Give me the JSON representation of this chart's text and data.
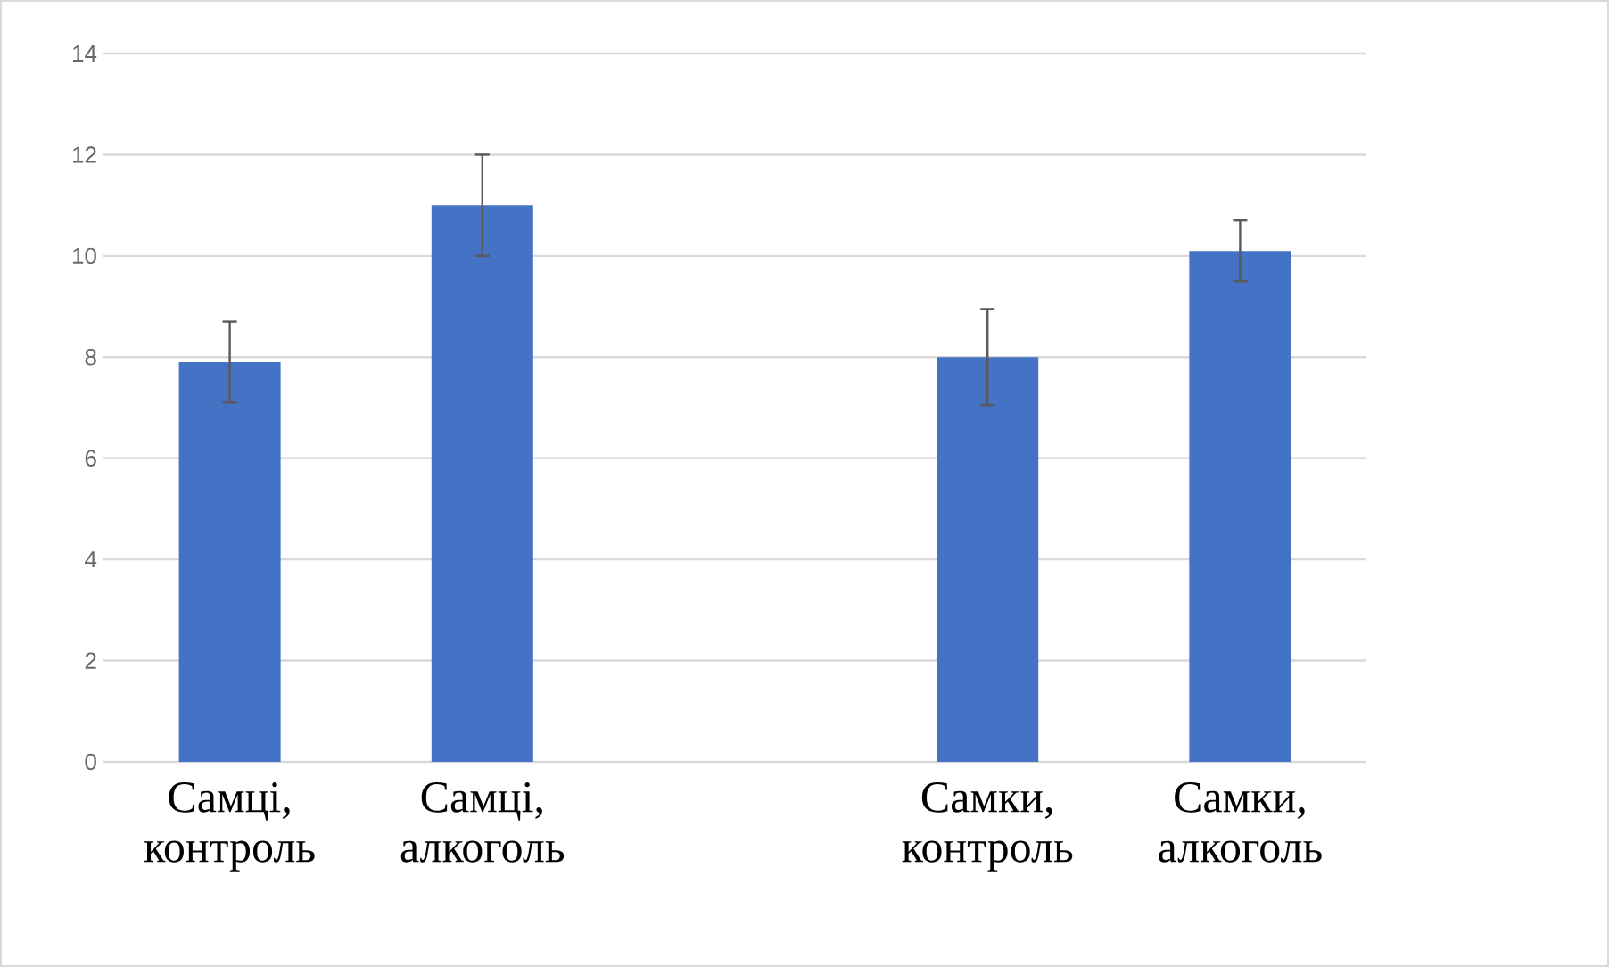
{
  "chart_data": {
    "type": "bar",
    "categories": [
      "Самці, контроль",
      "Самці, алкоголь",
      null,
      "Самки, контроль",
      "Самки, алкоголь"
    ],
    "values": [
      7.9,
      11.0,
      null,
      8.0,
      10.1
    ],
    "errors": [
      0.8,
      1.0,
      null,
      0.95,
      0.6
    ],
    "color": "#4472c4",
    "ylim": [
      0,
      14
    ],
    "yticks": [
      0,
      2,
      4,
      6,
      8,
      10,
      12,
      14
    ],
    "grid": "y"
  }
}
